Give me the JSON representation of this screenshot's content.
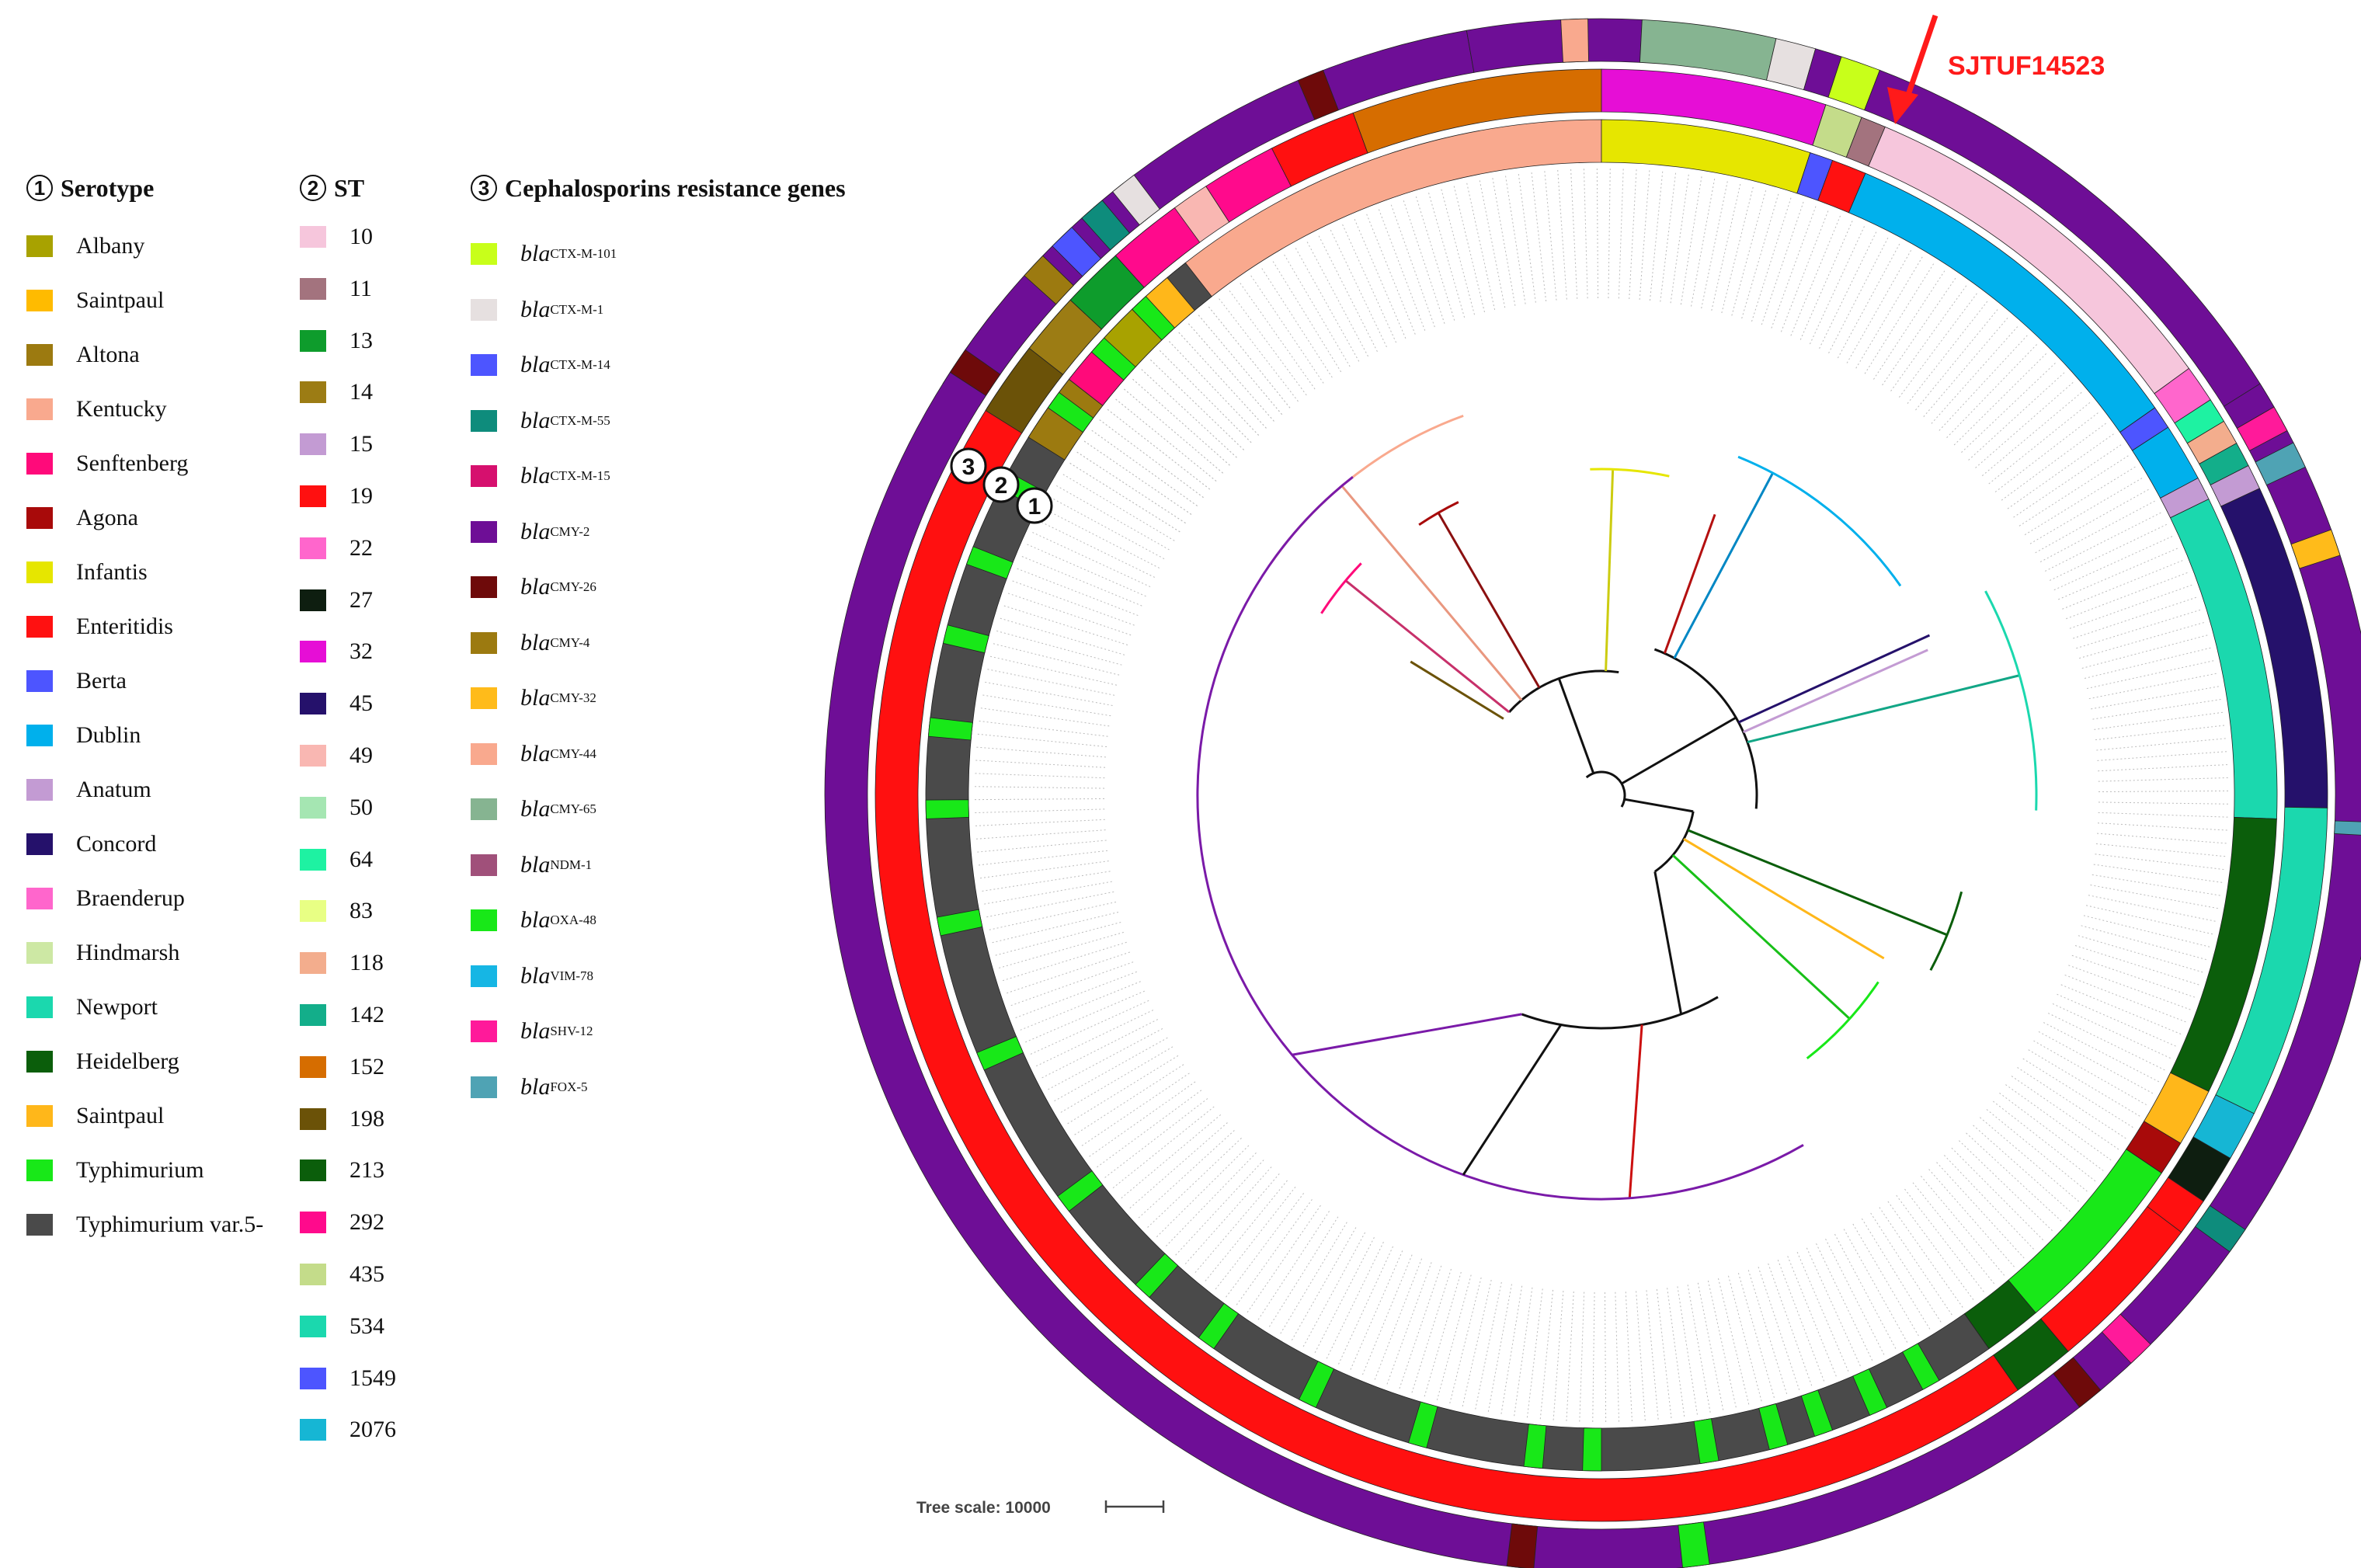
{
  "annotation": {
    "highlight_label": "SJTUF14523",
    "highlight_color": "#ff1a1a"
  },
  "ring_labels": [
    "3",
    "2",
    "1"
  ],
  "tree_scale_label": "Tree scale: 10000",
  "legend": {
    "serotype": {
      "number": "1",
      "title": "Serotype",
      "items": [
        {
          "label": "Albany",
          "color": "#a8a200"
        },
        {
          "label": "Saintpaul",
          "color": "#ffbb00"
        },
        {
          "label": "Altona",
          "color": "#9c7a10"
        },
        {
          "label": "Kentucky",
          "color": "#f9a98e"
        },
        {
          "label": "Senftenberg",
          "color": "#ff0a7a"
        },
        {
          "label": "Agona",
          "color": "#a80a0a"
        },
        {
          "label": "Infantis",
          "color": "#e6e600"
        },
        {
          "label": "Enteritidis",
          "color": "#ff1111"
        },
        {
          "label": "Berta",
          "color": "#4d55ff"
        },
        {
          "label": "Dublin",
          "color": "#00b0ec"
        },
        {
          "label": "Anatum",
          "color": "#c39bd3"
        },
        {
          "label": "Concord",
          "color": "#25116b"
        },
        {
          "label": "Braenderup",
          "color": "#ff66cc"
        },
        {
          "label": "Hindmarsh",
          "color": "#cde8a4"
        },
        {
          "label": "Newport",
          "color": "#1bd8ae"
        },
        {
          "label": "Heidelberg",
          "color": "#0b5e0b"
        },
        {
          "label": "Saintpaul",
          "color": "#ffb71a"
        },
        {
          "label": "Typhimurium",
          "color": "#18e818"
        },
        {
          "label": "Typhimurium var.5-",
          "color": "#4a4a4a"
        }
      ]
    },
    "st": {
      "number": "2",
      "title": "ST",
      "items": [
        {
          "label": "10",
          "color": "#f6c6dc"
        },
        {
          "label": "11",
          "color": "#a3737e"
        },
        {
          "label": "13",
          "color": "#0e9c2c"
        },
        {
          "label": "14",
          "color": "#9c7c14"
        },
        {
          "label": "15",
          "color": "#c39bd3"
        },
        {
          "label": "19",
          "color": "#ff1010"
        },
        {
          "label": "22",
          "color": "#ff66cc"
        },
        {
          "label": "27",
          "color": "#0e1e10"
        },
        {
          "label": "32",
          "color": "#e60ed6"
        },
        {
          "label": "45",
          "color": "#25116b"
        },
        {
          "label": "49",
          "color": "#f9b7b2"
        },
        {
          "label": "50",
          "color": "#a5e6b2"
        },
        {
          "label": "64",
          "color": "#1ef2a2"
        },
        {
          "label": "83",
          "color": "#e8ff84"
        },
        {
          "label": "118",
          "color": "#f3ad8d"
        },
        {
          "label": "142",
          "color": "#13ae8a"
        },
        {
          "label": "152",
          "color": "#d66d00"
        },
        {
          "label": "198",
          "color": "#6b5208"
        },
        {
          "label": "213",
          "color": "#0b5e0b"
        },
        {
          "label": "292",
          "color": "#ff0a8c"
        },
        {
          "label": "435",
          "color": "#c4dc8a"
        },
        {
          "label": "534",
          "color": "#1bd8ae"
        },
        {
          "label": "1549",
          "color": "#4d55ff"
        },
        {
          "label": "2076",
          "color": "#16b6d4"
        }
      ]
    },
    "genes": {
      "number": "3",
      "title": "Cephalosporins resistance genes",
      "items": [
        {
          "main": "bla",
          "sub": "CTX-M-101",
          "color": "#c8ff1a"
        },
        {
          "main": "bla",
          "sub": "CTX-M-1",
          "color": "#e6e0e0"
        },
        {
          "main": "bla",
          "sub": "CTX-M-14",
          "color": "#4d55ff"
        },
        {
          "main": "bla",
          "sub": "CTX-M-55",
          "color": "#0e8c7c"
        },
        {
          "main": "bla",
          "sub": "CTX-M-15",
          "color": "#d6106e"
        },
        {
          "main": "bla",
          "sub": "CMY-2",
          "color": "#6e0e96"
        },
        {
          "main": "bla",
          "sub": "CMY-26",
          "color": "#6e0a0a"
        },
        {
          "main": "bla",
          "sub": "CMY-4",
          "color": "#9c7a10"
        },
        {
          "main": "bla",
          "sub": "CMY-32",
          "color": "#ffbb1a"
        },
        {
          "main": "bla",
          "sub": "CMY-44",
          "color": "#f9a98e"
        },
        {
          "main": "bla",
          "sub": "CMY-65",
          "color": "#86b491"
        },
        {
          "main": "bla",
          "sub": "NDM-1",
          "color": "#a0507a"
        },
        {
          "main": "bla",
          "sub": "OXA-48",
          "color": "#18e818"
        },
        {
          "main": "bla",
          "sub": "VIM-78",
          "color": "#16b6e4"
        },
        {
          "main": "bla",
          "sub": "SHV-12",
          "color": "#ff1a9a"
        },
        {
          "main": "bla",
          "sub": "FOX-5",
          "color": "#4fa3b4"
        }
      ]
    }
  }
}
